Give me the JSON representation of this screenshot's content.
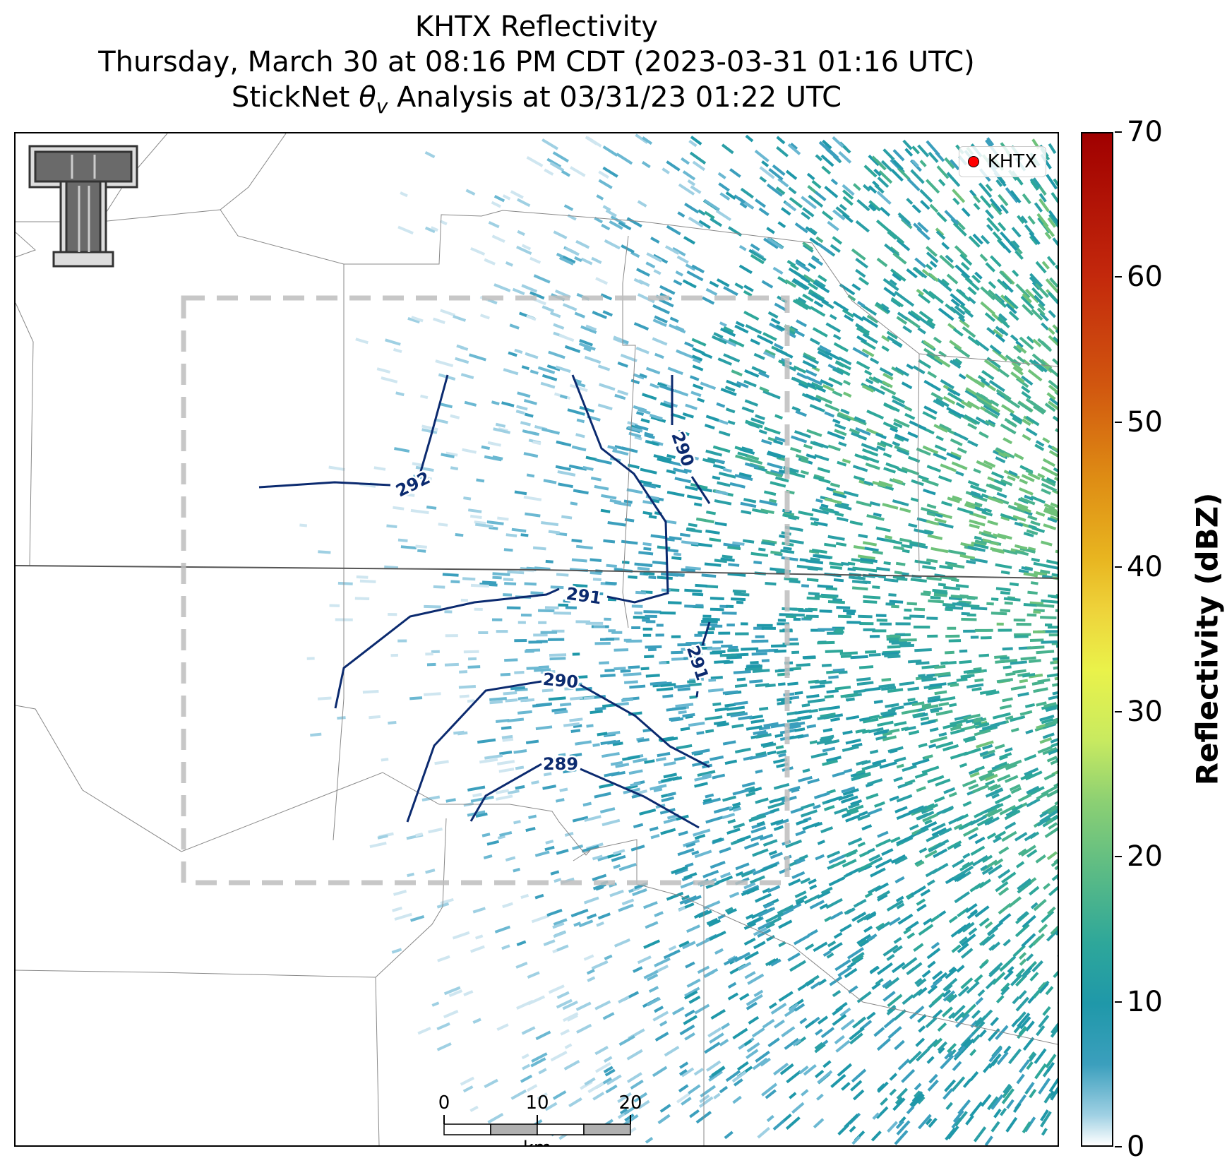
{
  "header": {
    "title_line1": "KHTX Reflectivity",
    "title_line2": "Thursday, March 30 at 08:16 PM CDT (2023-03-31 01:16 UTC)",
    "title_line3_prefix": "StickNet ",
    "title_line3_theta": "θ",
    "title_line3_sub": "v",
    "title_line3_suffix": " Analysis at 03/31/23 01:22 UTC"
  },
  "legend": {
    "radar_label": "KHTX",
    "marker_color": "#ff0000"
  },
  "colorbar": {
    "label": "Reflectivity (dBZ)",
    "ticks": [
      "0",
      "10",
      "20",
      "30",
      "40",
      "50",
      "60",
      "70"
    ],
    "min": 0,
    "max": 70
  },
  "contours": {
    "labels": [
      "292",
      "291",
      "291",
      "290",
      "290",
      "289"
    ],
    "color": "#0b2a6f"
  },
  "scalebar": {
    "ticks": [
      "0",
      "10",
      "20"
    ],
    "unit": "km"
  },
  "colors": {
    "reflectivity_main": "#1f98a9",
    "reflectivity_high": "#6fc27a",
    "analysis_box": "#c8c8c8"
  }
}
